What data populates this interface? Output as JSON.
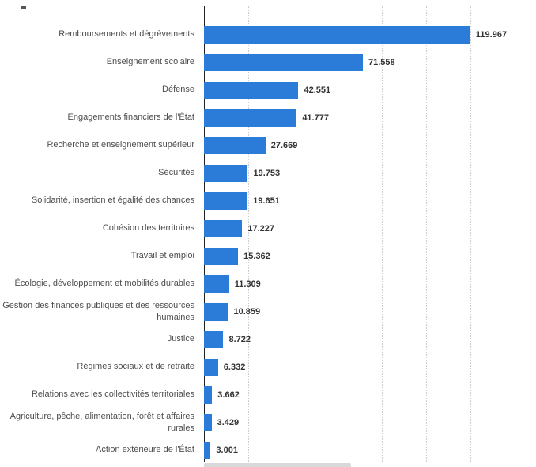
{
  "chart_data": {
    "type": "bar",
    "orientation": "horizontal",
    "title": "",
    "xlabel": "",
    "ylabel": "",
    "xlim": [
      0,
      120
    ],
    "grid_step": 20,
    "grid": "dotted-vertical",
    "legend": "none",
    "bar_color": "#2b7cd9",
    "categories": [
      "Remboursements et dégrèvements",
      "Enseignement scolaire",
      "Défense",
      "Engagements financiers de l'État",
      "Recherche et enseignement supérieur",
      "Sécurités",
      "Solidarité, insertion et égalité des chances",
      "Cohésion des territoires",
      "Travail et emploi",
      "Écologie, développement et mobilités durables",
      "Gestion des finances publiques et des ressources humaines",
      "Justice",
      "Régimes sociaux et de retraite",
      "Relations avec les collectivités territoriales",
      "Agriculture, pêche, alimentation, forêt et affaires rurales",
      "Action extérieure de l'État"
    ],
    "values": [
      119.967,
      71.558,
      42.551,
      41.777,
      27.669,
      19.753,
      19.651,
      17.227,
      15.362,
      11.309,
      10.859,
      8.722,
      6.332,
      3.662,
      3.429,
      3.001
    ],
    "value_labels": [
      "119.967",
      "71.558",
      "42.551",
      "41.777",
      "27.669",
      "19.753",
      "19.651",
      "17.227",
      "15.362",
      "11.309",
      "10.859",
      "8.722",
      "6.332",
      "3.662",
      "3.429",
      "3.001"
    ]
  }
}
